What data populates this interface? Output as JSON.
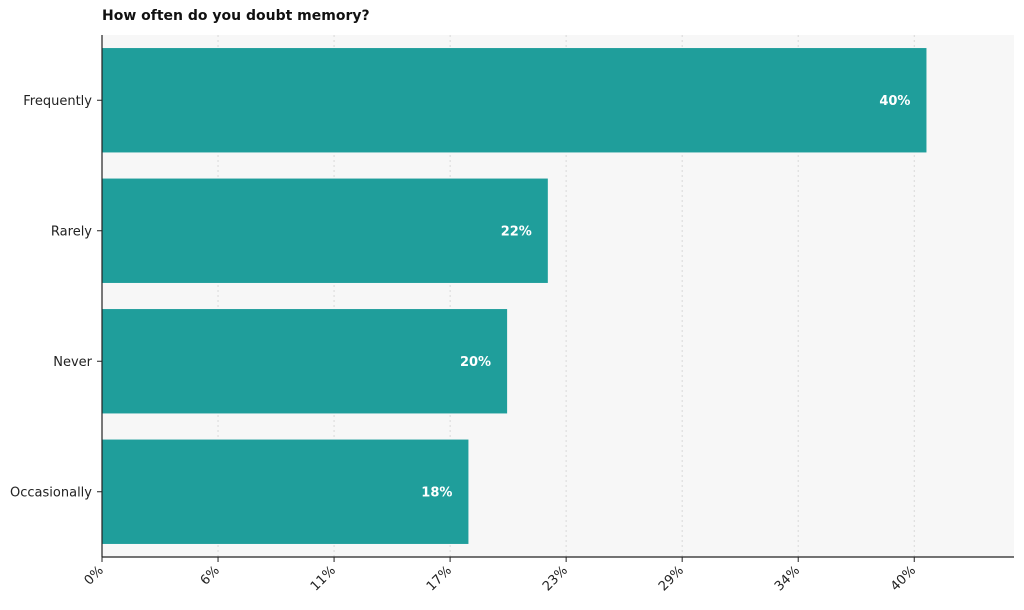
{
  "chart_data": {
    "type": "bar",
    "orientation": "horizontal",
    "title": "How often do you doubt memory?",
    "xlabel": "",
    "ylabel": "",
    "categories": [
      "Frequently",
      "Rarely",
      "Never",
      "Occasionally"
    ],
    "values": [
      40.5,
      21.9,
      19.9,
      18.0
    ],
    "value_labels": [
      "40%",
      "22%",
      "20%",
      "18%"
    ],
    "x_ticks": [
      0,
      5.7,
      11.4,
      17.1,
      22.8,
      28.5,
      34.2,
      39.9
    ],
    "x_tick_labels": [
      "0%",
      "6%",
      "11%",
      "17%",
      "23%",
      "29%",
      "34%",
      "40%"
    ],
    "xlim": [
      0,
      44.8
    ],
    "grid": "vertical dotted",
    "legend": "none",
    "colors": {
      "bar": "#1f9e9b",
      "plot_background": "#f7f7f7",
      "grid": "#d9d9d9",
      "axis": "#222222",
      "value_label": "#ffffff"
    }
  }
}
